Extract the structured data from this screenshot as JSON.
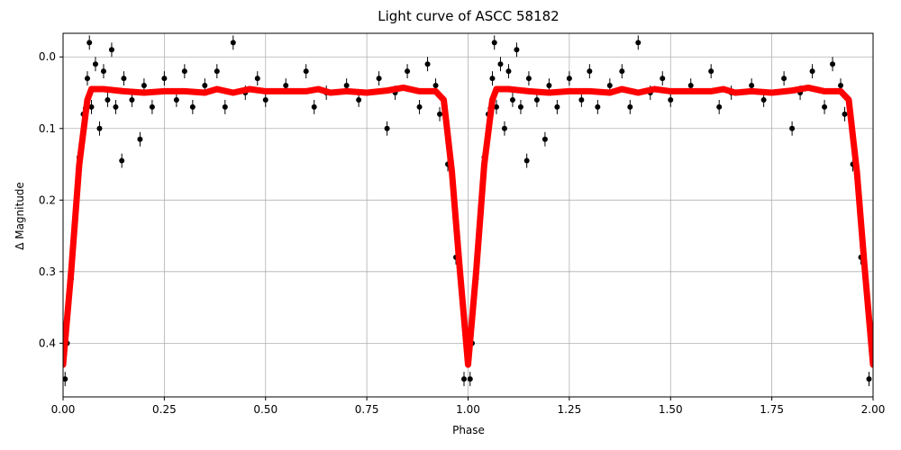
{
  "chart_data": {
    "type": "scatter",
    "title": "Light curve of ASCC 58182",
    "xlabel": "Phase",
    "ylabel": "Δ Magnitude",
    "xlim": [
      0,
      2
    ],
    "ylim": [
      -0.033,
      0.475
    ],
    "invert_y": true,
    "grid": true,
    "xticks": [
      {
        "value": 0,
        "label": "0.00"
      },
      {
        "value": 0.25,
        "label": "0.25"
      },
      {
        "value": 0.5,
        "label": "0.50"
      },
      {
        "value": 0.75,
        "label": "0.75"
      },
      {
        "value": 1,
        "label": "1.00"
      },
      {
        "value": 1.25,
        "label": "1.25"
      },
      {
        "value": 1.5,
        "label": "1.50"
      },
      {
        "value": 1.75,
        "label": "1.75"
      },
      {
        "value": 2,
        "label": "2.00"
      }
    ],
    "yticks": [
      {
        "value": 0,
        "label": "0.0"
      },
      0.1,
      0.2,
      0.3,
      0.4
    ],
    "series": [
      {
        "type": "scatter",
        "color": "#000000",
        "yerr": 0.01,
        "x": [
          0.005,
          0.01,
          0.02,
          0.03,
          0.04,
          0.05,
          0.06,
          0.065,
          0.07,
          0.08,
          0.09,
          0.1,
          0.11,
          0.12,
          0.13,
          0.145,
          0.15,
          0.17,
          0.19,
          0.2,
          0.22,
          0.25,
          0.28,
          0.3,
          0.32,
          0.35,
          0.38,
          0.4,
          0.42,
          0.45,
          0.48,
          0.5,
          0.55,
          0.6,
          0.62,
          0.65,
          0.7,
          0.73,
          0.78,
          0.8,
          0.82,
          0.85,
          0.88,
          0.9,
          0.92,
          0.93,
          0.95,
          0.97,
          0.99,
          1.005,
          1.01,
          1.02,
          1.03,
          1.04,
          1.05,
          1.06,
          1.065,
          1.07,
          1.08,
          1.09,
          1.1,
          1.11,
          1.12,
          1.13,
          1.145,
          1.15,
          1.17,
          1.19,
          1.2,
          1.22,
          1.25,
          1.28,
          1.3,
          1.32,
          1.35,
          1.38,
          1.4,
          1.42,
          1.45,
          1.48,
          1.5,
          1.55,
          1.6,
          1.62,
          1.65,
          1.7,
          1.73,
          1.78,
          1.8,
          1.82,
          1.85,
          1.88,
          1.9,
          1.92,
          1.93,
          1.95,
          1.97,
          1.99
        ],
        "values": [
          0.45,
          0.4,
          0.31,
          0.22,
          0.14,
          0.08,
          0.03,
          -0.02,
          0.07,
          0.01,
          0.1,
          0.02,
          0.06,
          -0.01,
          0.07,
          0.145,
          0.03,
          0.06,
          0.115,
          0.04,
          0.07,
          0.03,
          0.06,
          0.02,
          0.07,
          0.04,
          0.02,
          0.07,
          -0.02,
          0.05,
          0.03,
          0.06,
          0.04,
          0.02,
          0.07,
          0.05,
          0.04,
          0.06,
          0.03,
          0.1,
          0.05,
          0.02,
          0.07,
          0.01,
          0.04,
          0.08,
          0.15,
          0.28,
          0.45,
          0.45,
          0.4,
          0.31,
          0.22,
          0.14,
          0.08,
          0.03,
          -0.02,
          0.07,
          0.01,
          0.1,
          0.02,
          0.06,
          -0.01,
          0.07,
          0.145,
          0.03,
          0.06,
          0.115,
          0.04,
          0.07,
          0.03,
          0.06,
          0.02,
          0.07,
          0.04,
          0.02,
          0.07,
          -0.02,
          0.05,
          0.03,
          0.06,
          0.04,
          0.02,
          0.07,
          0.05,
          0.04,
          0.06,
          0.03,
          0.1,
          0.05,
          0.02,
          0.07,
          0.01,
          0.04,
          0.08,
          0.15,
          0.28,
          0.45
        ]
      },
      {
        "type": "line",
        "color": "#ff0000",
        "x": [
          0,
          0.02,
          0.04,
          0.06,
          0.07,
          0.1,
          0.15,
          0.2,
          0.25,
          0.3,
          0.35,
          0.38,
          0.42,
          0.46,
          0.5,
          0.55,
          0.6,
          0.63,
          0.66,
          0.7,
          0.75,
          0.8,
          0.84,
          0.88,
          0.92,
          0.94,
          0.96,
          0.98,
          1.0,
          1.02,
          1.04,
          1.06,
          1.07,
          1.1,
          1.15,
          1.2,
          1.25,
          1.3,
          1.35,
          1.38,
          1.42,
          1.46,
          1.5,
          1.55,
          1.6,
          1.63,
          1.66,
          1.7,
          1.75,
          1.8,
          1.84,
          1.88,
          1.92,
          1.94,
          1.96,
          1.98,
          2.0
        ],
        "values": [
          0.43,
          0.3,
          0.15,
          0.06,
          0.045,
          0.045,
          0.048,
          0.05,
          0.048,
          0.048,
          0.05,
          0.045,
          0.05,
          0.045,
          0.048,
          0.048,
          0.048,
          0.045,
          0.05,
          0.048,
          0.05,
          0.047,
          0.043,
          0.048,
          0.048,
          0.06,
          0.16,
          0.3,
          0.43,
          0.3,
          0.15,
          0.06,
          0.045,
          0.045,
          0.048,
          0.05,
          0.048,
          0.048,
          0.05,
          0.045,
          0.05,
          0.045,
          0.048,
          0.048,
          0.048,
          0.045,
          0.05,
          0.048,
          0.05,
          0.047,
          0.043,
          0.048,
          0.048,
          0.06,
          0.16,
          0.3,
          0.43
        ]
      }
    ]
  }
}
